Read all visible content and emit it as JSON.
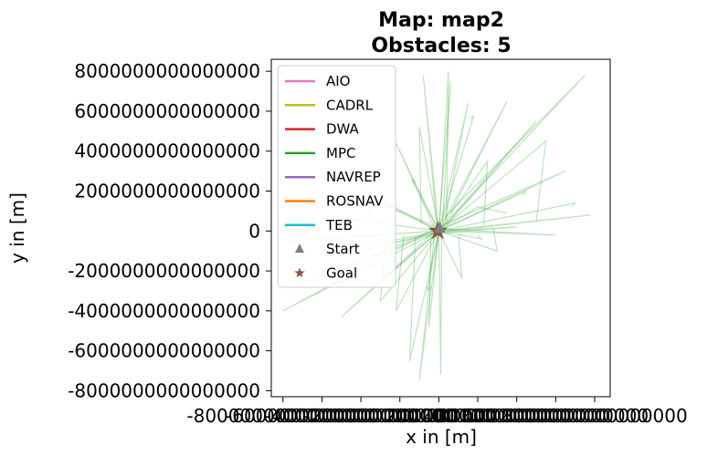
{
  "chart_data": {
    "type": "line",
    "title_lines": [
      "Map: map2",
      "Obstacles: 5"
    ],
    "xlabel": "x in [m]",
    "ylabel": "y in [m]",
    "xlim": [
      -8600000000000000,
      8800000000000000
    ],
    "ylim": [
      8600000000000000,
      -8300000000000000
    ],
    "y_inverted": true,
    "grid": false,
    "legend_placement": "upper-left",
    "xticks": [
      {
        "value": -8000000000000000,
        "label": "-8000000000000000"
      },
      {
        "value": -6000000000000000,
        "label": "-6000000000000000"
      },
      {
        "value": -4000000000000000,
        "label": "-4000000000000000"
      },
      {
        "value": -2000000000000000,
        "label": "-2000000000000000"
      },
      {
        "value": 0,
        "label": "0"
      },
      {
        "value": 2000000000000000,
        "label": "2000000000000000"
      },
      {
        "value": 4000000000000000,
        "label": "4000000000000000"
      },
      {
        "value": 6000000000000000,
        "label": "6000000000000000"
      },
      {
        "value": 8000000000000000,
        "label": "8000000000000000"
      }
    ],
    "yticks": [
      {
        "value": -8000000000000000,
        "label": "-8000000000000000"
      },
      {
        "value": -6000000000000000,
        "label": "-6000000000000000"
      },
      {
        "value": -4000000000000000,
        "label": "-4000000000000000"
      },
      {
        "value": -2000000000000000,
        "label": "-2000000000000000"
      },
      {
        "value": 0,
        "label": "0"
      },
      {
        "value": 2000000000000000,
        "label": "2000000000000000"
      },
      {
        "value": 4000000000000000,
        "label": "4000000000000000"
      },
      {
        "value": 6000000000000000,
        "label": "6000000000000000"
      },
      {
        "value": 8000000000000000,
        "label": "8000000000000000"
      }
    ],
    "series": [
      {
        "name": "AIO",
        "color": "#e377c2",
        "paths": []
      },
      {
        "name": "CADRL",
        "color": "#bcbd22",
        "paths": []
      },
      {
        "name": "DWA",
        "color": "#d62728",
        "paths": []
      },
      {
        "name": "MPC",
        "color": "#2ca02c",
        "opacity": 0.3,
        "paths": [
          [
            [
              0,
              0
            ],
            [
              -1000000000000000,
              -7500000000000000
            ],
            [
              -200000000000000,
              0
            ]
          ],
          [
            [
              0,
              0
            ],
            [
              100000000000000,
              -7200000000000000
            ],
            [
              150000000000000,
              -100000000000000
            ]
          ],
          [
            [
              0,
              0
            ],
            [
              -2200000000000000,
              -4000000000000000
            ],
            [
              -1800000000000000,
              -200000000000000
            ]
          ],
          [
            [
              0,
              0
            ],
            [
              -5000000000000000,
              -4300000000000000
            ],
            [
              -300000000000000,
              -100000000000000
            ]
          ],
          [
            [
              0,
              0
            ],
            [
              -8000000000000000,
              -4000000000000000
            ],
            [
              -600000000000000,
              -100000000000000
            ]
          ],
          [
            [
              0,
              0
            ],
            [
              -7800000000000000,
              -500000000000000
            ],
            [
              -200000000000000,
              0
            ]
          ],
          [
            [
              0,
              0
            ],
            [
              -6500000000000000,
              -2500000000000000
            ],
            [
              -100000000000000,
              100000000000000
            ]
          ],
          [
            [
              0,
              0
            ],
            [
              -4000000000000000,
              -1000000000000000
            ],
            [
              -500000000000000,
              -200000000000000
            ]
          ],
          [
            [
              0,
              0
            ],
            [
              -3200000000000000,
              1500000000000000
            ],
            [
              -100000000000000,
              200000000000000
            ]
          ],
          [
            [
              0,
              0
            ],
            [
              -2200000000000000,
              4400000000000000
            ],
            [
              -200000000000000,
              100000000000000
            ]
          ],
          [
            [
              0,
              0
            ],
            [
              -800000000000000,
              7800000000000000
            ],
            [
              -100000000000000,
              300000000000000
            ]
          ],
          [
            [
              0,
              0
            ],
            [
              600000000000000,
              7500000000000000
            ],
            [
              200000000000000,
              400000000000000
            ]
          ],
          [
            [
              0,
              0
            ],
            [
              1500000000000000,
              6400000000000000
            ],
            [
              300000000000000,
              500000000000000
            ]
          ],
          [
            [
              0,
              0
            ],
            [
              3500000000000000,
              6500000000000000
            ],
            [
              600000000000000,
              900000000000000
            ]
          ],
          [
            [
              0,
              0
            ],
            [
              7500000000000000,
              7800000000000000
            ],
            [
              300000000000000,
              700000000000000
            ]
          ],
          [
            [
              0,
              0
            ],
            [
              5000000000000000,
              5500000000000000
            ],
            [
              400000000000000,
              300000000000000
            ]
          ],
          [
            [
              0,
              0
            ],
            [
              6500000000000000,
              3000000000000000
            ],
            [
              200000000000000,
              300000000000000
            ]
          ],
          [
            [
              0,
              0
            ],
            [
              7800000000000000,
              800000000000000
            ],
            [
              500000000000000,
              0
            ]
          ],
          [
            [
              0,
              0
            ],
            [
              6000000000000000,
              -200000000000000
            ],
            [
              300000000000000,
              100000000000000
            ]
          ],
          [
            [
              0,
              0
            ],
            [
              4000000000000000,
              200000000000000
            ],
            [
              200000000000000,
              -100000000000000
            ]
          ],
          [
            [
              0,
              0
            ],
            [
              2000000000000000,
              1200000000000000
            ],
            [
              3500000000000000,
              900000000000000
            ]
          ],
          [
            [
              0,
              0
            ],
            [
              -1500000000000000,
              -6500000000000000
            ],
            [
              -1200000000000000,
              -300000000000000
            ]
          ],
          [
            [
              0,
              0
            ],
            [
              -500000000000000,
              -4800000000000000
            ],
            [
              -400000000000000,
              -100000000000000
            ]
          ],
          [
            [
              0,
              0
            ],
            [
              -2600000000000000,
              -2200000000000000
            ],
            [
              -2300000000000000,
              -100000000000000
            ]
          ],
          [
            [
              0,
              0
            ],
            [
              -3800000000000000,
              2000000000000000
            ],
            [
              -3400000000000000,
              300000000000000
            ]
          ],
          [
            [
              0,
              0
            ],
            [
              -1000000000000000,
              5200000000000000
            ],
            [
              -900000000000000,
              400000000000000
            ]
          ],
          [
            [
              0,
              0
            ],
            [
              500000000000000,
              8000000000000000
            ],
            [
              400000000000000,
              500000000000000
            ]
          ],
          [
            [
              0,
              0
            ],
            [
              2500000000000000,
              3500000000000000
            ],
            [
              2300000000000000,
              300000000000000
            ]
          ],
          [
            [
              0,
              0
            ],
            [
              5500000000000000,
              4500000000000000
            ],
            [
              5000000000000000,
              500000000000000
            ]
          ],
          [
            [
              0,
              0
            ],
            [
              3000000000000000,
              -1000000000000000
            ],
            [
              2800000000000000,
              100000000000000
            ]
          ],
          [
            [
              0,
              0
            ],
            [
              1200000000000000,
              -2400000000000000
            ],
            [
              1000000000000000,
              -200000000000000
            ]
          ],
          [
            [
              0,
              0
            ],
            [
              -4600000000000000,
              600000000000000
            ],
            [
              -4200000000000000,
              -200000000000000
            ]
          ],
          [
            [
              0,
              0
            ],
            [
              -6000000000000000,
              -1200000000000000
            ],
            [
              -5500000000000000,
              -100000000000000
            ]
          ],
          [
            [
              0,
              0
            ],
            [
              -3000000000000000,
              -3500000000000000
            ],
            [
              -2700000000000000,
              -300000000000000
            ]
          ],
          [
            [
              0,
              0
            ],
            [
              -600000000000000,
              -3000000000000000
            ],
            [
              -400000000000000,
              -2800000000000000
            ]
          ],
          [
            [
              0,
              0
            ],
            [
              -1400000000000000,
              2600000000000000
            ],
            [
              -1200000000000000,
              2400000000000000
            ]
          ],
          [
            [
              0,
              0
            ],
            [
              1800000000000000,
              5800000000000000
            ],
            [
              1600000000000000,
              5600000000000000
            ]
          ],
          [
            [
              0,
              0
            ],
            [
              4500000000000000,
              2000000000000000
            ],
            [
              4300000000000000,
              1800000000000000
            ]
          ],
          [
            [
              0,
              0
            ],
            [
              7000000000000000,
              1400000000000000
            ],
            [
              6800000000000000,
              1200000000000000
            ]
          ],
          [
            [
              0,
              0
            ],
            [
              2200000000000000,
              -400000000000000
            ],
            [
              2000000000000000,
              -200000000000000
            ]
          ]
        ]
      },
      {
        "name": "NAVREP",
        "color": "#9467bd",
        "paths": []
      },
      {
        "name": "ROSNAV",
        "color": "#ff7f0e",
        "paths": []
      },
      {
        "name": "TEB",
        "color": "#17becf",
        "paths": []
      }
    ],
    "start": {
      "name": "Start",
      "color": "#7f7f7f",
      "marker": "triangle",
      "points": [
        [
          50000000000000,
          150000000000000
        ]
      ]
    },
    "goal": {
      "name": "Goal",
      "color": "#8c564b",
      "marker": "star",
      "points": [
        [
          -50000000000000,
          0
        ]
      ]
    }
  }
}
